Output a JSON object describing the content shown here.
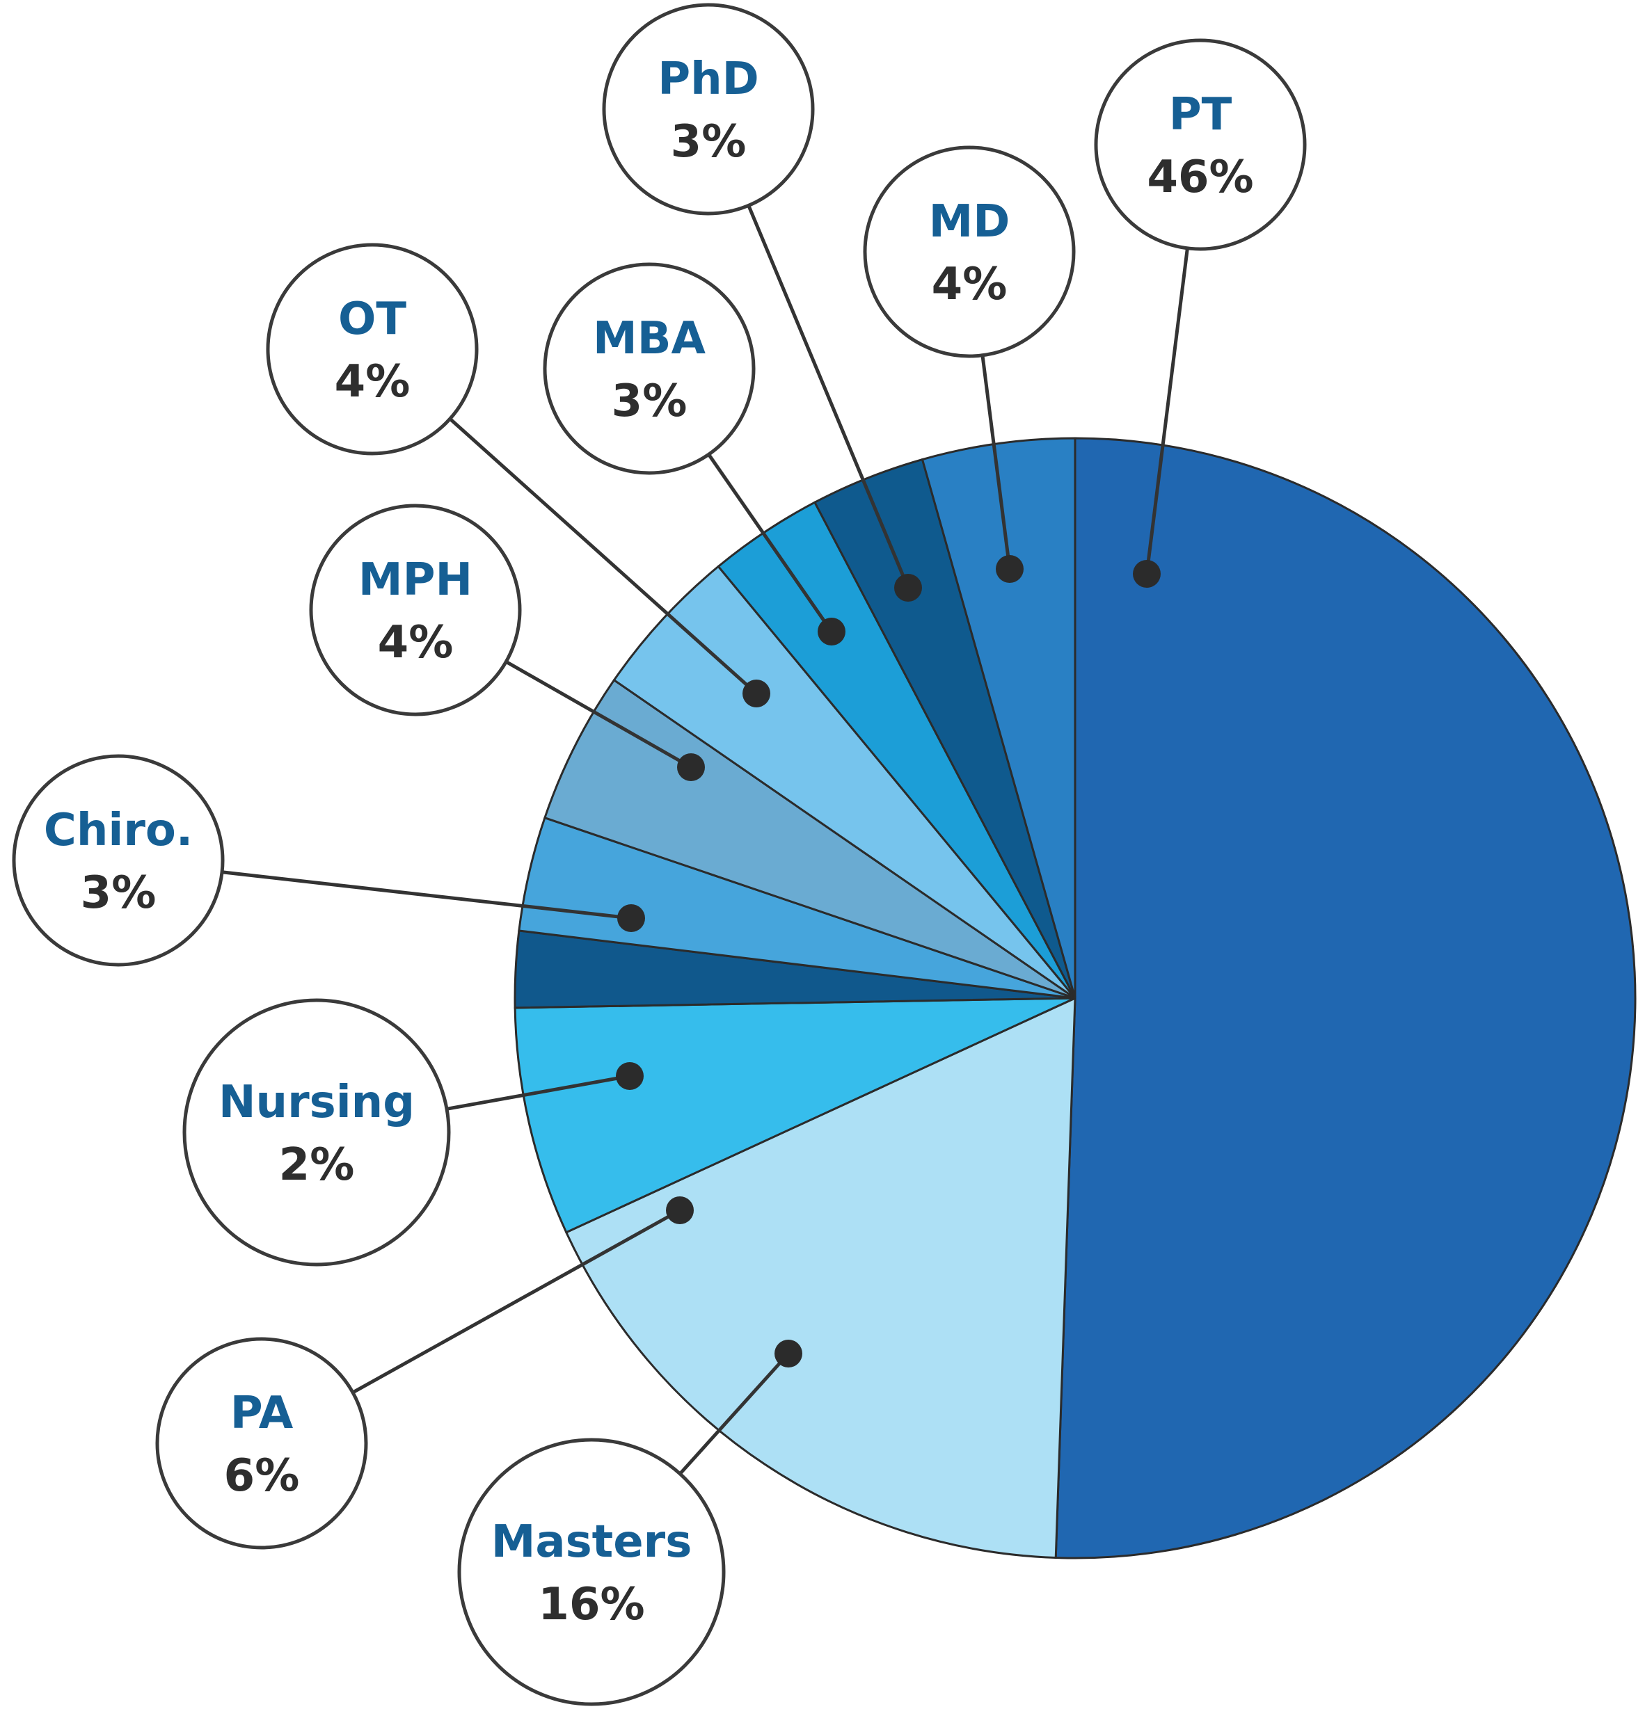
{
  "chart_data": {
    "type": "pie",
    "title": "",
    "categories": [
      "PT",
      "Masters",
      "PA",
      "Nursing",
      "Chiro.",
      "MPH",
      "OT",
      "MBA",
      "PhD",
      "MD"
    ],
    "values": [
      46,
      16,
      6,
      2,
      3,
      4,
      4,
      3,
      3,
      4
    ],
    "labels": [
      "46%",
      "16%",
      "6%",
      "2%",
      "3%",
      "4%",
      "4%",
      "3%",
      "3%",
      "4%"
    ],
    "slice_colors": [
      "#2067b1",
      "#ade0f5",
      "#36bdec",
      "#10588c",
      "#46a5dc",
      "#6aabd2",
      "#76c4ed",
      "#1c9ed7",
      "#0f5a8e",
      "#2980c4"
    ],
    "start_angle_deg": 0,
    "direction": "clockwise",
    "legend": "none",
    "label_style": "callout bubbles with leader lines"
  },
  "colors": {
    "label_category": "#165f94",
    "label_value": "#2e2e2e",
    "outline": "#2b2b2b",
    "background": "#ffffff"
  }
}
